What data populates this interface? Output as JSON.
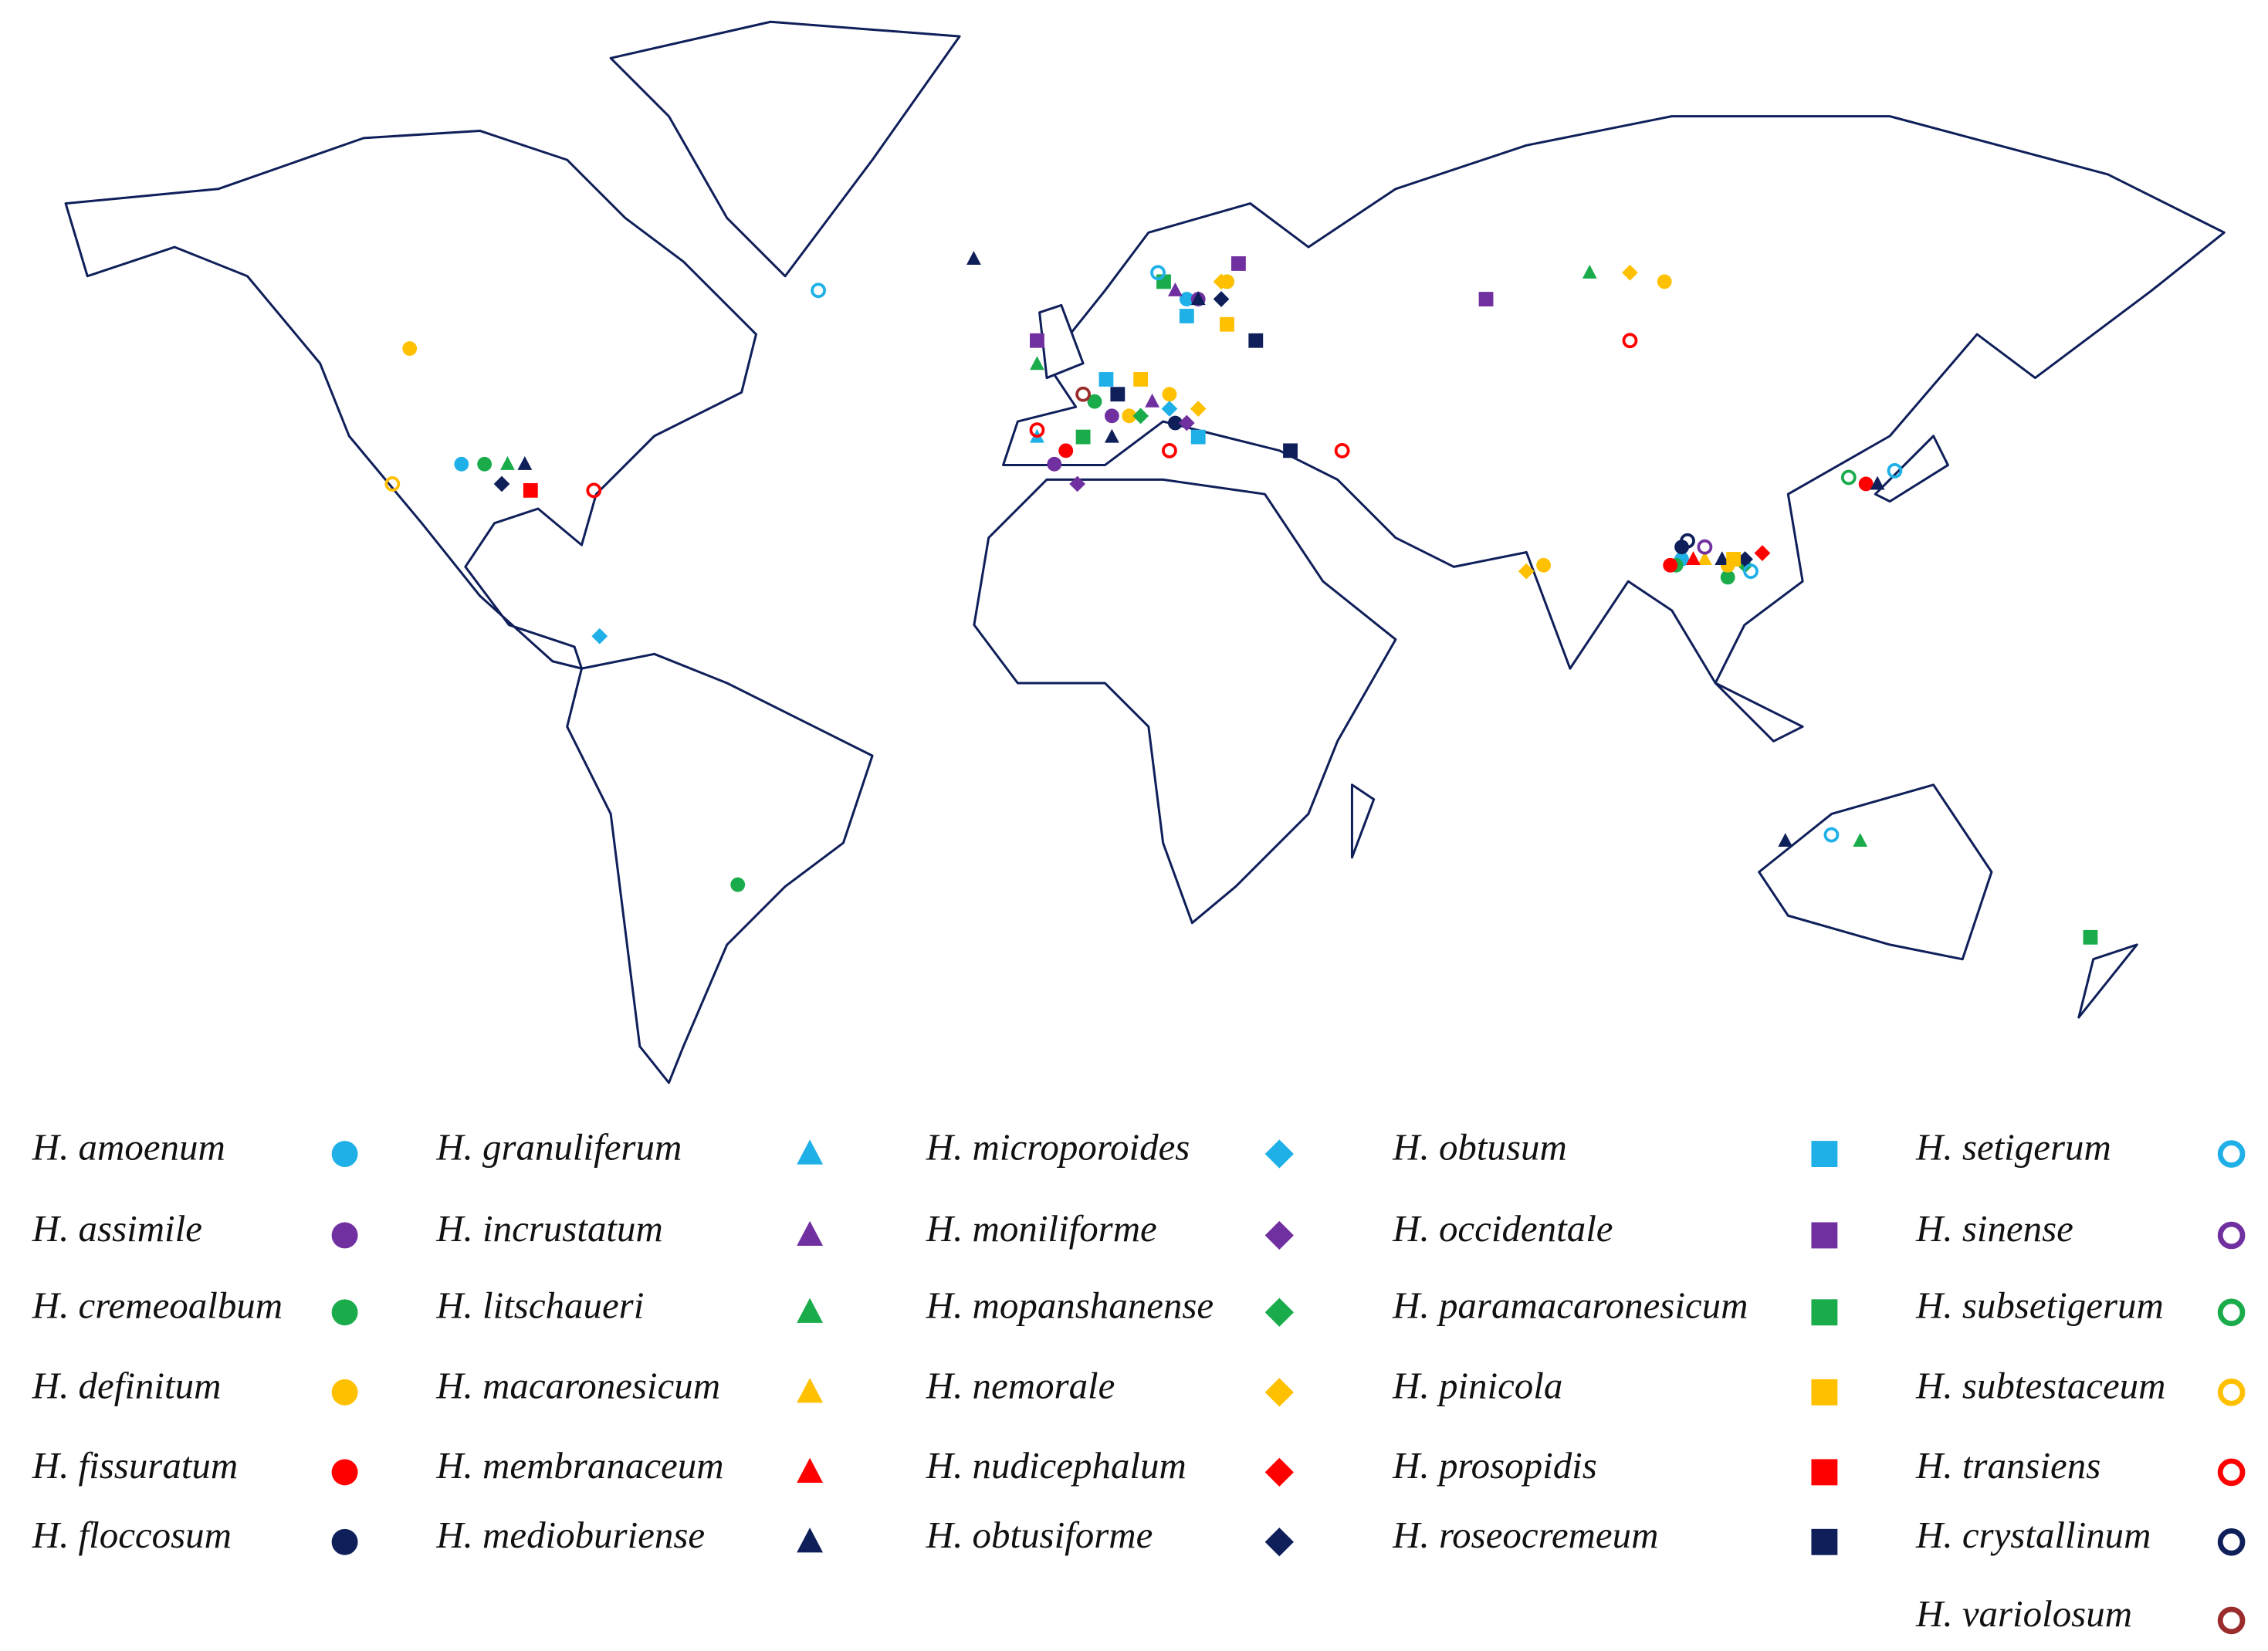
{
  "map": {
    "type": "point-map",
    "legend": [
      {
        "name": "H. amoenum",
        "marker": "circle",
        "color": "#1fb0e8",
        "locations": [
          [
            -108,
            38
          ],
          [
            10,
            50
          ],
          [
            18,
            60
          ],
          [
            -3,
            40
          ],
          [
            104,
            23
          ]
        ]
      },
      {
        "name": "H. assimile",
        "marker": "circle",
        "color": "#7030a0",
        "locations": [
          [
            5,
            45
          ],
          [
            -5,
            38
          ],
          [
            20,
            60
          ]
        ]
      },
      {
        "name": "H. cremeoalbum",
        "marker": "circle",
        "color": "#1aab4b",
        "locations": [
          [
            -104,
            38
          ],
          [
            -60,
            -32
          ],
          [
            2,
            47
          ],
          [
            25,
            62
          ],
          [
            103,
            22
          ],
          [
            112,
            20
          ]
        ]
      },
      {
        "name": "H. definitum",
        "marker": "circle",
        "color": "#ffc000",
        "locations": [
          [
            -117,
            54
          ],
          [
            15,
            48
          ],
          [
            8,
            45
          ],
          [
            25,
            62
          ],
          [
            101,
            62
          ],
          [
            80,
            22
          ],
          [
            112,
            22
          ]
        ]
      },
      {
        "name": "H. fissuratum",
        "marker": "circle",
        "color": "#ff0000",
        "locations": [
          [
            -3,
            40
          ],
          [
            102,
            22
          ],
          [
            136,
            35
          ]
        ]
      },
      {
        "name": "H. floccosum",
        "marker": "circle",
        "color": "#0f1f5a",
        "locations": [
          [
            104,
            25
          ],
          [
            16,
            44
          ]
        ]
      },
      {
        "name": "H. granuliferum",
        "marker": "triangle",
        "color": "#1fb0e8",
        "locations": [
          [
            -8,
            42
          ]
        ]
      },
      {
        "name": "H. incrustatum",
        "marker": "triangle",
        "color": "#7030a0",
        "locations": [
          [
            12,
            47
          ],
          [
            16,
            61
          ]
        ]
      },
      {
        "name": "H. litschaueri",
        "marker": "triangle",
        "color": "#1aab4b",
        "locations": [
          [
            -100,
            38
          ],
          [
            88,
            63
          ],
          [
            135,
            -25
          ],
          [
            -8,
            52
          ]
        ]
      },
      {
        "name": "H. macaronesicum",
        "marker": "triangle",
        "color": "#ffc000",
        "locations": [
          [
            108,
            23
          ]
        ]
      },
      {
        "name": "H. membranaceum",
        "marker": "triangle",
        "color": "#ff0000",
        "locations": [
          [
            106,
            23
          ]
        ]
      },
      {
        "name": "H. medioburiense",
        "marker": "triangle",
        "color": "#0f1f5a",
        "locations": [
          [
            -97,
            38
          ],
          [
            -19,
            64.5
          ],
          [
            20,
            60
          ],
          [
            5,
            42
          ],
          [
            111,
            23
          ],
          [
            122,
            -25
          ],
          [
            138,
            35
          ]
        ]
      },
      {
        "name": "H. microporoides",
        "marker": "diamond",
        "color": "#1fb0e8",
        "locations": [
          [
            -84,
            10
          ],
          [
            15,
            46
          ]
        ]
      },
      {
        "name": "H. moniliforme",
        "marker": "diamond",
        "color": "#7030a0",
        "locations": [
          [
            -1,
            35
          ],
          [
            18,
            44
          ]
        ]
      },
      {
        "name": "H. mopanshanense",
        "marker": "diamond",
        "color": "#1aab4b",
        "locations": [
          [
            10,
            45
          ],
          [
            115,
            22
          ]
        ]
      },
      {
        "name": "H. nemorale",
        "marker": "diamond",
        "color": "#ffc000",
        "locations": [
          [
            95,
            63
          ],
          [
            77,
            21
          ],
          [
            20,
            46
          ],
          [
            24,
            62
          ]
        ]
      },
      {
        "name": "H. nudicephalum",
        "marker": "diamond",
        "color": "#ff0000",
        "locations": [
          [
            118,
            24
          ]
        ]
      },
      {
        "name": "H. obtusiforme",
        "marker": "diamond",
        "color": "#0f1f5a",
        "locations": [
          [
            -101,
            35
          ],
          [
            115,
            23
          ],
          [
            24,
            60
          ]
        ]
      },
      {
        "name": "H. obtusum",
        "marker": "square",
        "color": "#1fb0e8",
        "locations": [
          [
            4,
            50
          ],
          [
            18,
            58
          ],
          [
            20,
            42
          ]
        ]
      },
      {
        "name": "H. occidentale",
        "marker": "square",
        "color": "#7030a0",
        "locations": [
          [
            -8,
            55
          ],
          [
            70,
            60
          ],
          [
            27,
            64
          ]
        ]
      },
      {
        "name": "H. paramacaronesicum",
        "marker": "square",
        "color": "#1aab4b",
        "locations": [
          [
            0,
            42
          ],
          [
            175,
            -40
          ],
          [
            14,
            62
          ]
        ]
      },
      {
        "name": "H. pinicola",
        "marker": "square",
        "color": "#ffc000",
        "locations": [
          [
            113,
            23
          ],
          [
            25,
            57
          ],
          [
            10,
            50
          ]
        ]
      },
      {
        "name": "H. prosopidis",
        "marker": "square",
        "color": "#ff0000",
        "locations": [
          [
            -96,
            34
          ]
        ]
      },
      {
        "name": "H. roseocremeum",
        "marker": "square",
        "color": "#0f1f5a",
        "locations": [
          [
            36,
            40
          ],
          [
            30,
            55
          ],
          [
            6,
            48
          ]
        ]
      },
      {
        "name": "H. setigerum",
        "marker": "ring",
        "color": "#1fb0e8",
        "locations": [
          [
            -46,
            61
          ],
          [
            130,
            -24
          ],
          [
            141,
            37
          ],
          [
            116,
            21
          ],
          [
            13,
            63
          ]
        ]
      },
      {
        "name": "H. sinense",
        "marker": "ring",
        "color": "#7030a0",
        "locations": [
          [
            108,
            25
          ]
        ]
      },
      {
        "name": "H. subsetigerum",
        "marker": "ring",
        "color": "#1aab4b",
        "locations": [
          [
            133,
            36
          ]
        ]
      },
      {
        "name": "H. subtestaceum",
        "marker": "ring",
        "color": "#ffc000",
        "locations": [
          [
            -120,
            35
          ]
        ]
      },
      {
        "name": "H. transiens",
        "marker": "ring",
        "color": "#ff0000",
        "locations": [
          [
            -85,
            34
          ],
          [
            95,
            55
          ],
          [
            45,
            40
          ],
          [
            15,
            40
          ],
          [
            -8,
            43
          ]
        ]
      },
      {
        "name": "H. crystallinum",
        "marker": "ring",
        "color": "#0f1f5a",
        "locations": [
          [
            105,
            26
          ]
        ]
      },
      {
        "name": "H. variolosum",
        "marker": "ring",
        "color": "#9b2c2c",
        "locations": [
          [
            0,
            48
          ]
        ]
      }
    ]
  }
}
